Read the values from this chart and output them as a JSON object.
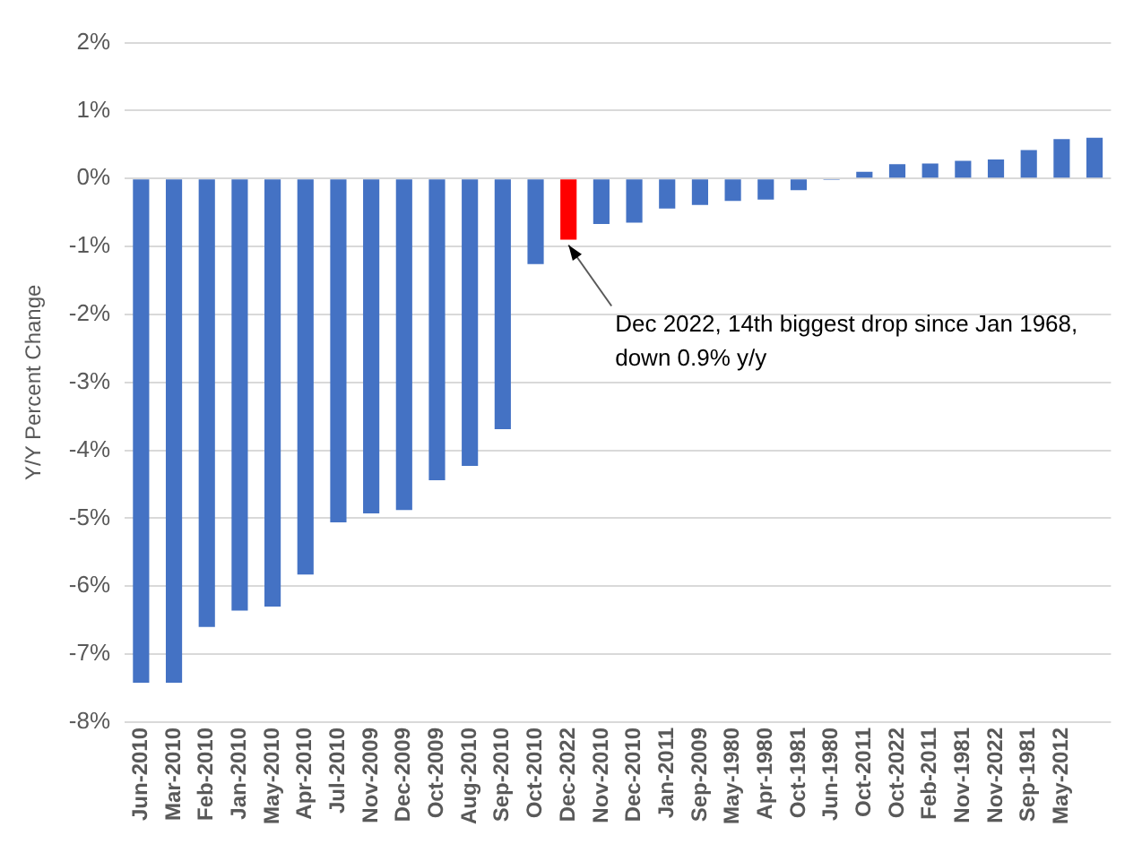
{
  "chart_data": {
    "type": "bar",
    "ylabel": "Y/Y Percent Change",
    "categories": [
      "Jun-2010",
      "Mar-2010",
      "Feb-2010",
      "Jan-2010",
      "May-2010",
      "Apr-2010",
      "Jul-2010",
      "Nov-2009",
      "Dec-2009",
      "Oct-2009",
      "Aug-2010",
      "Sep-2010",
      "Oct-2010",
      "Dec-2022",
      "Nov-2010",
      "Dec-2010",
      "Jan-2011",
      "Sep-2009",
      "May-1980",
      "Apr-1980",
      "Oct-1981",
      "Jun-1980",
      "Oct-2011",
      "Oct-2022",
      "Feb-2011",
      "Nov-1981",
      "Nov-2022",
      "Sep-1981",
      "May-2012",
      null
    ],
    "values": [
      -7.42,
      -7.42,
      -6.6,
      -6.36,
      -6.3,
      -5.83,
      -5.06,
      -4.93,
      -4.88,
      -4.44,
      -4.23,
      -3.69,
      -1.26,
      -0.9,
      -0.67,
      -0.65,
      -0.44,
      -0.39,
      -0.33,
      -0.31,
      -0.17,
      -0.02,
      0.1,
      0.21,
      0.22,
      0.26,
      0.28,
      0.42,
      0.58,
      0.6
    ],
    "colors": [
      "#4472c4",
      "#4472c4",
      "#4472c4",
      "#4472c4",
      "#4472c4",
      "#4472c4",
      "#4472c4",
      "#4472c4",
      "#4472c4",
      "#4472c4",
      "#4472c4",
      "#4472c4",
      "#4472c4",
      "#ff0000",
      "#4472c4",
      "#4472c4",
      "#4472c4",
      "#4472c4",
      "#4472c4",
      "#4472c4",
      "#4472c4",
      "#4472c4",
      "#4472c4",
      "#4472c4",
      "#4472c4",
      "#4472c4",
      "#4472c4",
      "#4472c4",
      "#4472c4",
      "#4472c4"
    ],
    "ylim": [
      -8,
      2
    ],
    "yticks": [
      {
        "value": -8,
        "label": "-8%"
      },
      {
        "value": -7,
        "label": "-7%"
      },
      {
        "value": -6,
        "label": "-6%"
      },
      {
        "value": -5,
        "label": "-5%"
      },
      {
        "value": -4,
        "label": "-4%"
      },
      {
        "value": -3,
        "label": "-3%"
      },
      {
        "value": -2,
        "label": "-2%"
      },
      {
        "value": -1,
        "label": "-1%"
      },
      {
        "value": 0,
        "label": "0%"
      },
      {
        "value": 1,
        "label": "1%"
      },
      {
        "value": 2,
        "label": "2%"
      }
    ],
    "grid": "y",
    "legend": false,
    "annotations": [
      {
        "text": "Dec 2022, 14th biggest drop since Jan 1968,\ndown 0.9% y/y",
        "x": "Dec-2022",
        "y": -0.9
      }
    ]
  }
}
